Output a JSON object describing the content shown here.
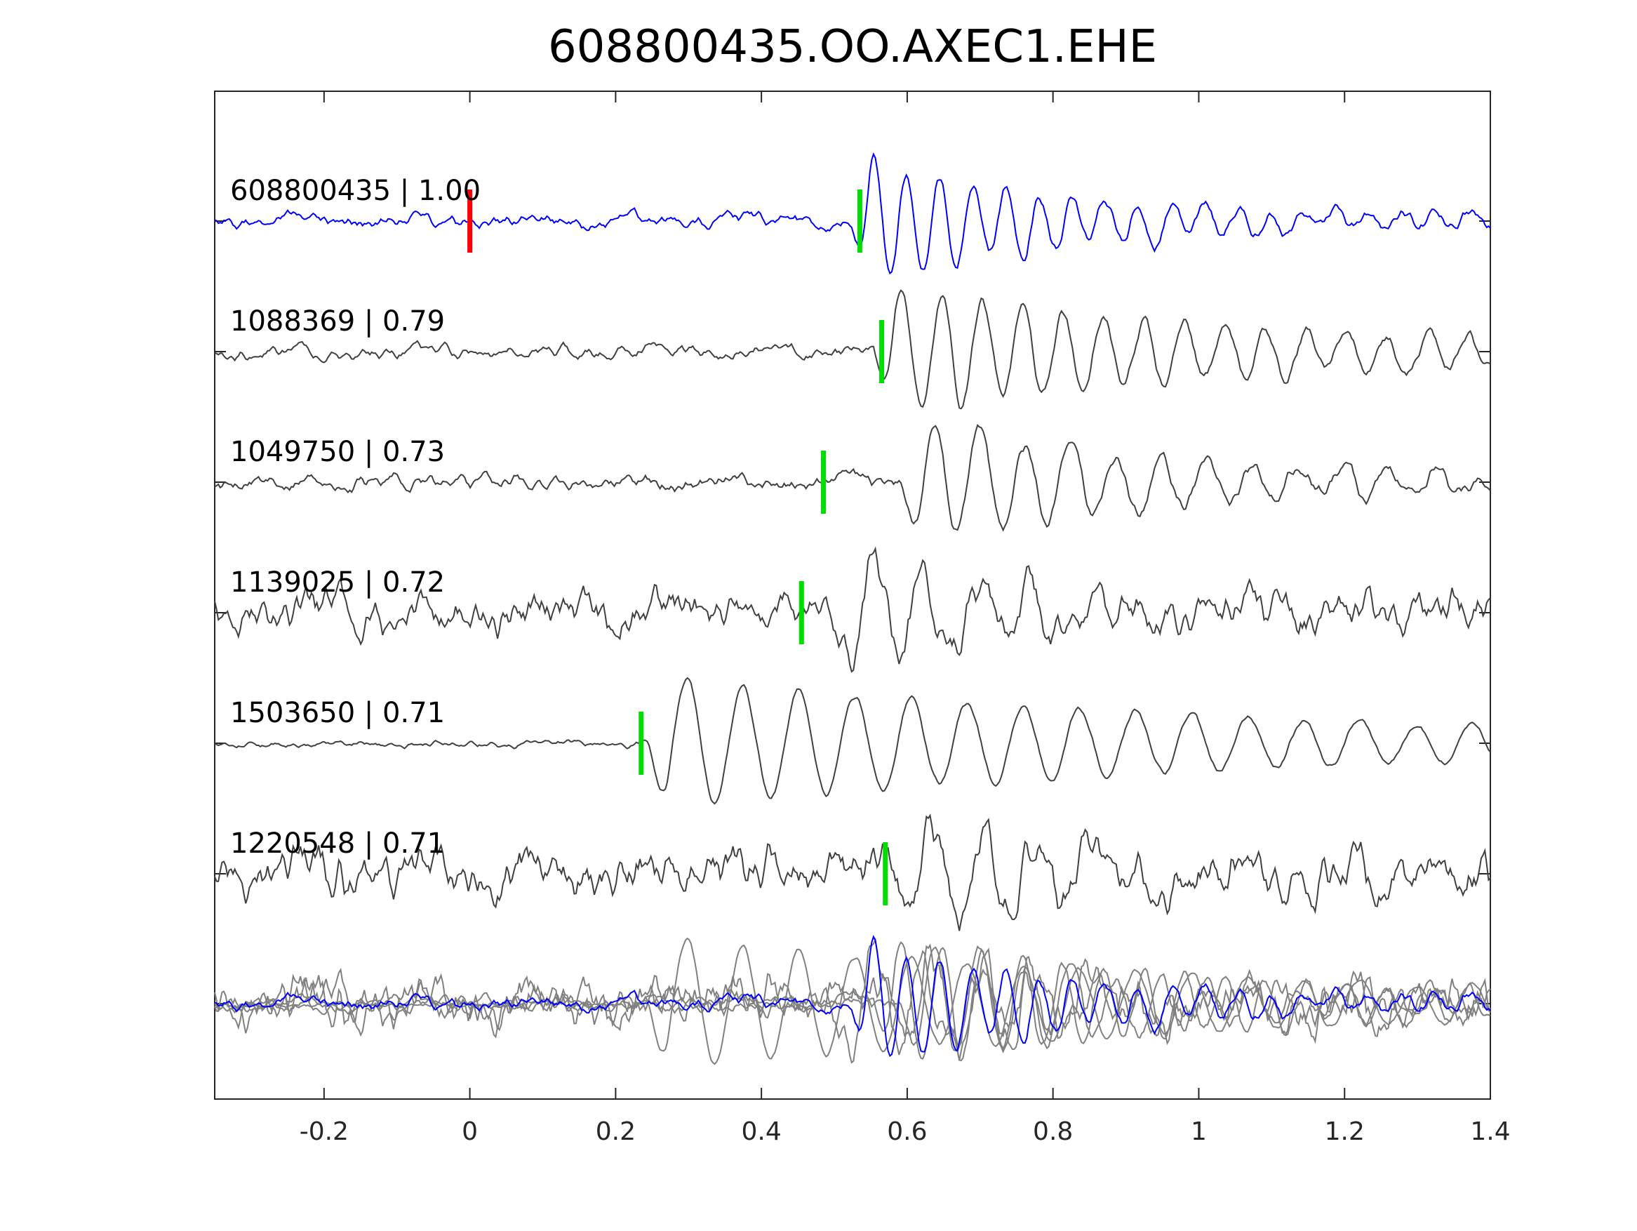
{
  "chart_data": {
    "type": "line",
    "title": "608800435.OO.AXEC1.EHE",
    "xlabel": "",
    "ylabel": "",
    "xlim": [
      -0.35,
      1.4
    ],
    "xticks": [
      -0.2,
      0,
      0.2,
      0.4,
      0.6,
      0.8,
      1,
      1.2,
      1.4
    ],
    "xtick_labels": [
      "-0.2",
      "0",
      "0.2",
      "0.4",
      "0.6",
      "0.8",
      "1",
      "1.2",
      "1.4"
    ],
    "grid": false,
    "legend": "none",
    "colors": {
      "template": "#0000ff",
      "match": "#404040",
      "overlay": "#808080",
      "pick_red": "#ff0000",
      "pick_green": "#00dd00"
    },
    "series": [
      {
        "label": "608800435 | 1.00",
        "color": "#0000ff",
        "pick_red": 0.0,
        "pick_green": 0.535,
        "seed": 11,
        "noise": 0.1,
        "wave": [
          {
            "t0": 0.52,
            "f": 11,
            "amp": 1.0,
            "decay": 0.32
          }
        ]
      },
      {
        "label": "1088369 | 0.79",
        "color": "#404040",
        "pick_green": 0.565,
        "seed": 23,
        "noise": 0.1,
        "wave": [
          {
            "t0": 0.55,
            "f": 9,
            "amp": 0.95,
            "decay": 0.55
          }
        ]
      },
      {
        "label": "1049750 | 0.73",
        "color": "#404040",
        "pick_green": 0.485,
        "seed": 37,
        "noise": 0.12,
        "wave": [
          {
            "t0": 0.59,
            "f": 8,
            "amp": 1.0,
            "decay": 0.38
          }
        ]
      },
      {
        "label": "1139025 | 0.72",
        "color": "#404040",
        "pick_green": 0.455,
        "seed": 41,
        "noise": 0.3,
        "wave": [
          {
            "t0": 0.5,
            "f": 7,
            "amp": 1.0,
            "decay": 0.2
          }
        ]
      },
      {
        "label": "1503650 | 0.71",
        "color": "#404040",
        "pick_green": 0.235,
        "seed": 53,
        "noise": 0.05,
        "wave": [
          {
            "t0": 0.24,
            "f": 6.5,
            "amp": 1.0,
            "decay": 0.9
          }
        ]
      },
      {
        "label": "1220548 | 0.71",
        "color": "#404040",
        "pick_green": 0.57,
        "seed": 67,
        "noise": 0.35,
        "wave": [
          {
            "t0": 0.58,
            "f": 7,
            "amp": 0.95,
            "decay": 0.25
          }
        ]
      }
    ]
  }
}
